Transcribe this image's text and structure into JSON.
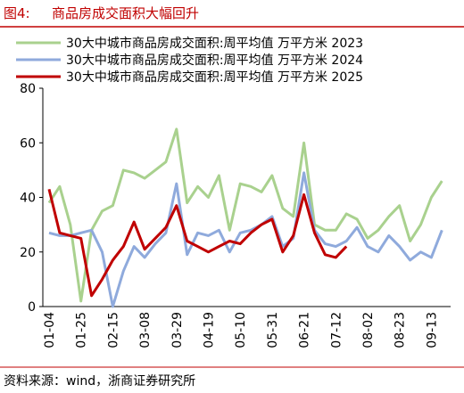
{
  "header": {
    "label": "图4:",
    "title": "商品房成交面积大幅回升"
  },
  "source": "资料来源：wind，浙商证券研究所",
  "chart_data": {
    "type": "line",
    "categories": [
      "01-04",
      null,
      null,
      "01-25",
      null,
      null,
      "02-15",
      null,
      null,
      "03-08",
      null,
      null,
      "03-29",
      null,
      null,
      "04-19",
      null,
      null,
      "05-10",
      null,
      null,
      "05-31",
      null,
      null,
      "06-21",
      null,
      null,
      "07-12",
      null,
      null,
      "08-02",
      null,
      null,
      "08-23",
      null,
      null,
      "09-13",
      null
    ],
    "series": [
      {
        "name": "30大中城市商品房成交面积:周平均值  万平方米  2023",
        "color": "#a9d18e",
        "values": [
          38,
          44,
          30,
          2,
          28,
          35,
          37,
          50,
          49,
          47,
          50,
          53,
          65,
          38,
          44,
          40,
          48,
          28,
          45,
          44,
          42,
          48,
          36,
          33,
          60,
          30,
          28,
          28,
          34,
          32,
          25,
          28,
          33,
          37,
          24,
          30,
          40,
          46
        ]
      },
      {
        "name": "30大中城市商品房成交面积:周平均值  万平方米  2024",
        "color": "#8faadc",
        "values": [
          27,
          26,
          26,
          27,
          28,
          20,
          0,
          13,
          22,
          18,
          23,
          27,
          45,
          19,
          27,
          26,
          28,
          20,
          27,
          28,
          30,
          33,
          22,
          25,
          49,
          28,
          23,
          22,
          24,
          29,
          22,
          20,
          26,
          22,
          17,
          20,
          18,
          28
        ]
      },
      {
        "name": "30大中城市商品房成交面积:周平均值  万平方米  2025",
        "color": "#c00000",
        "values": [
          43,
          27,
          26,
          25,
          4,
          10,
          17,
          22,
          31,
          21,
          25,
          29,
          37,
          24,
          22,
          20,
          22,
          24,
          23,
          27,
          30,
          32,
          20,
          26,
          41,
          27,
          19,
          18,
          22,
          null,
          null,
          null,
          null,
          null,
          null,
          null,
          null,
          null
        ]
      }
    ],
    "ylim": [
      0,
      80
    ],
    "yticks": [
      0,
      20,
      40,
      60,
      80
    ]
  }
}
